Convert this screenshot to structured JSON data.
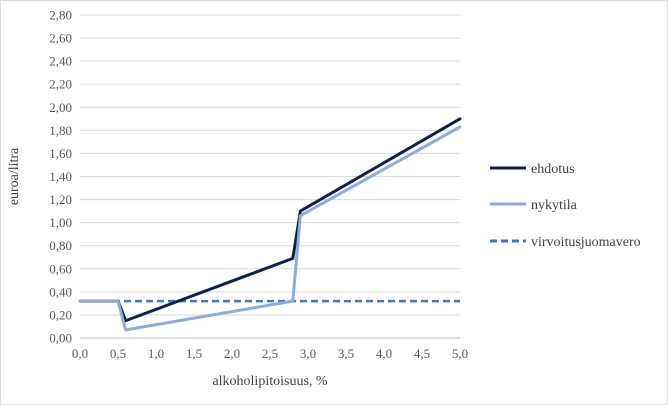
{
  "chart_data": {
    "type": "line",
    "title": "",
    "xlabel": "alkoholipitoisuus, %",
    "ylabel": "euroa/litra",
    "xlim": [
      0.0,
      5.0
    ],
    "ylim": [
      0.0,
      2.8
    ],
    "x_ticks": [
      "0,0",
      "0,5",
      "1,0",
      "1,5",
      "2,0",
      "2,5",
      "3,0",
      "3,5",
      "4,0",
      "4,5",
      "5,0"
    ],
    "y_ticks": [
      "0,00",
      "0,20",
      "0,40",
      "0,60",
      "0,80",
      "1,00",
      "1,20",
      "1,40",
      "1,60",
      "1,80",
      "2,00",
      "2,20",
      "2,40",
      "2,60",
      "2,80"
    ],
    "grid": "horizontal",
    "legend_position": "right",
    "series": [
      {
        "name": "ehdotus",
        "color": "#0d1f4f",
        "style": "solid",
        "x": [
          0.0,
          0.5,
          0.6,
          2.8,
          2.9,
          5.0
        ],
        "y": [
          0.32,
          0.32,
          0.15,
          0.69,
          1.1,
          1.9
        ]
      },
      {
        "name": "nykytila",
        "color": "#8faadc",
        "style": "solid",
        "x": [
          0.0,
          0.5,
          0.6,
          2.8,
          2.9,
          5.0
        ],
        "y": [
          0.32,
          0.32,
          0.07,
          0.32,
          1.06,
          1.83
        ]
      },
      {
        "name": "virvoitusjuomavero",
        "color": "#4472c4",
        "style": "dashed",
        "x": [
          0.0,
          5.0
        ],
        "y": [
          0.32,
          0.32
        ]
      }
    ]
  }
}
